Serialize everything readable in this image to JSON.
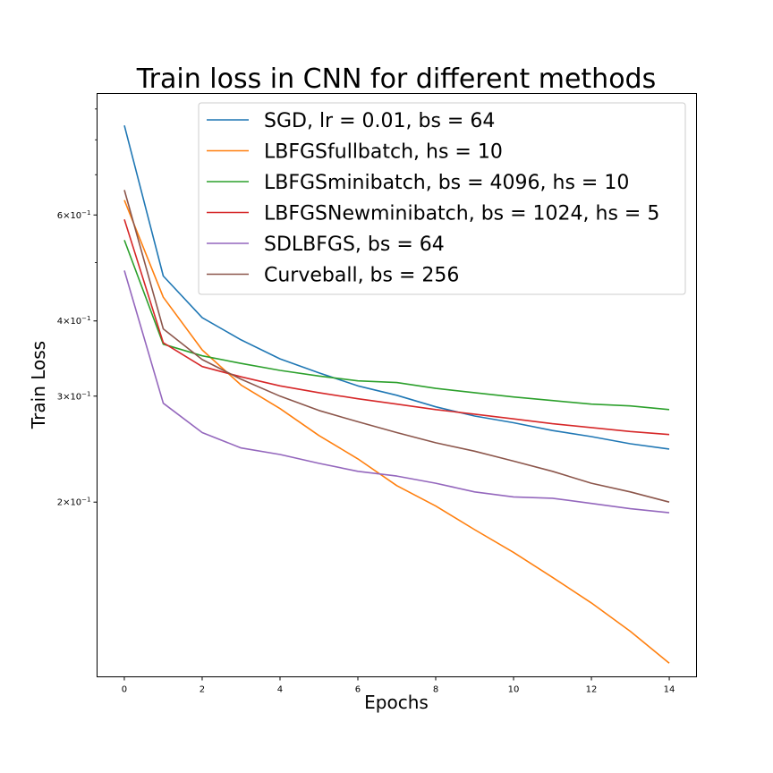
{
  "chart_data": {
    "type": "line",
    "title": "Train loss in CNN for different methods",
    "xlabel": "Epochs",
    "ylabel": "Train Loss",
    "xlim": [
      -0.7,
      14.7
    ],
    "ylim": [
      0.1025,
      0.955
    ],
    "yscale": "log",
    "grid": false,
    "legend_position": "top-right",
    "x": [
      0,
      1,
      2,
      3,
      4,
      5,
      6,
      7,
      8,
      9,
      10,
      11,
      12,
      13,
      14
    ],
    "x_ticks": [
      0,
      2,
      4,
      6,
      8,
      10,
      12,
      14
    ],
    "x_tick_labels": [
      "0",
      "2",
      "4",
      "6",
      "8",
      "10",
      "12",
      "14"
    ],
    "y_ticks": [
      {
        "value": 0.2,
        "base": "2",
        "exp": "−1"
      },
      {
        "value": 0.3,
        "base": "3",
        "exp": "−1"
      },
      {
        "value": 0.4,
        "base": "4",
        "exp": "−1"
      },
      {
        "value": 0.6,
        "base": "6",
        "exp": "−1"
      }
    ],
    "y_minor_ticks": [
      0.5,
      0.7,
      0.8,
      0.9
    ],
    "series": [
      {
        "name": "SGD, lr = 0.01, bs = 64",
        "color": "#1f77b4",
        "values": [
          0.845,
          0.475,
          0.405,
          0.372,
          0.346,
          0.328,
          0.312,
          0.301,
          0.288,
          0.278,
          0.271,
          0.263,
          0.257,
          0.25,
          0.245
        ]
      },
      {
        "name": "LBFGSfullbatch, hs = 10",
        "color": "#ff7f0e",
        "values": [
          0.635,
          0.438,
          0.358,
          0.313,
          0.286,
          0.258,
          0.236,
          0.213,
          0.197,
          0.18,
          0.165,
          0.15,
          0.136,
          0.122,
          0.108
        ]
      },
      {
        "name": "LBFGSminibatch, bs = 4096, hs = 10",
        "color": "#2ca02c",
        "values": [
          0.545,
          0.366,
          0.35,
          0.34,
          0.331,
          0.324,
          0.318,
          0.316,
          0.309,
          0.304,
          0.299,
          0.295,
          0.291,
          0.289,
          0.285
        ]
      },
      {
        "name": "LBFGSNewminibatch, bs = 1024, hs = 5",
        "color": "#d62728",
        "values": [
          0.59,
          0.368,
          0.336,
          0.323,
          0.312,
          0.304,
          0.297,
          0.291,
          0.285,
          0.28,
          0.275,
          0.27,
          0.266,
          0.262,
          0.259
        ]
      },
      {
        "name": "SDLBFGS, bs = 64",
        "color": "#9467bd",
        "values": [
          0.485,
          0.292,
          0.261,
          0.246,
          0.24,
          0.232,
          0.225,
          0.221,
          0.215,
          0.208,
          0.204,
          0.203,
          0.199,
          0.195,
          0.192
        ]
      },
      {
        "name": "Curveball, bs = 256",
        "color": "#8c564b",
        "values": [
          0.66,
          0.388,
          0.345,
          0.32,
          0.3,
          0.284,
          0.272,
          0.261,
          0.251,
          0.243,
          0.234,
          0.225,
          0.215,
          0.208,
          0.2
        ]
      }
    ]
  }
}
